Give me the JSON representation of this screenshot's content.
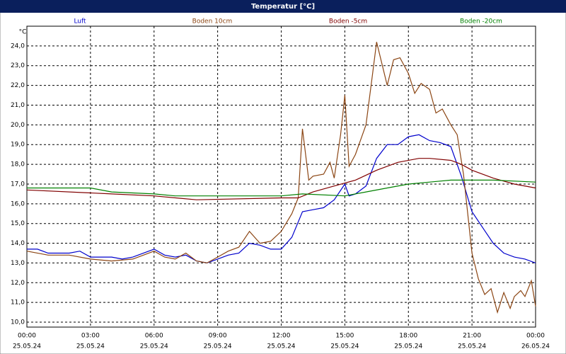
{
  "chart_data": {
    "type": "line",
    "title": "Temperatur [°C]",
    "y_unit": "°C",
    "xlim": [
      0,
      24
    ],
    "ylim": [
      9.75,
      25
    ],
    "grid": true,
    "xticks": [
      {
        "value": 0,
        "label": "00:00",
        "date": "25.05.24"
      },
      {
        "value": 3,
        "label": "03:00",
        "date": "25.05.24"
      },
      {
        "value": 6,
        "label": "06:00",
        "date": "25.05.24"
      },
      {
        "value": 9,
        "label": "09:00",
        "date": "25.05.24"
      },
      {
        "value": 12,
        "label": "12:00",
        "date": "25.05.24"
      },
      {
        "value": 15,
        "label": "15:00",
        "date": "25.05.24"
      },
      {
        "value": 18,
        "label": "18:00",
        "date": "25.05.24"
      },
      {
        "value": 21,
        "label": "21:00",
        "date": "25.05.24"
      },
      {
        "value": 24,
        "label": "00:00",
        "date": "26.05.24"
      }
    ],
    "yticks": [
      {
        "value": 10,
        "label": "10,0"
      },
      {
        "value": 11,
        "label": "11,0"
      },
      {
        "value": 12,
        "label": "12,0"
      },
      {
        "value": 13,
        "label": "13,0"
      },
      {
        "value": 14,
        "label": "14,0"
      },
      {
        "value": 15,
        "label": "15,0"
      },
      {
        "value": 16,
        "label": "16,0"
      },
      {
        "value": 17,
        "label": "17,0"
      },
      {
        "value": 18,
        "label": "18,0"
      },
      {
        "value": 19,
        "label": "19,0"
      },
      {
        "value": 20,
        "label": "20,0"
      },
      {
        "value": 21,
        "label": "21,0"
      },
      {
        "value": 22,
        "label": "22,0"
      },
      {
        "value": 23,
        "label": "23,0"
      },
      {
        "value": 24,
        "label": "24,0"
      }
    ],
    "series": [
      {
        "name": "Luft",
        "color": "#0000cc",
        "x": [
          0,
          0.5,
          1,
          2,
          2.5,
          3,
          4,
          4.5,
          5,
          6,
          6.5,
          7,
          7.5,
          8,
          8.5,
          9,
          9.5,
          10,
          10.5,
          11,
          11.5,
          12,
          12.5,
          13,
          13.5,
          14,
          14.5,
          15,
          15.2,
          15.5,
          16,
          16.5,
          17,
          17.5,
          18,
          18.5,
          19,
          19.5,
          20,
          20.5,
          21,
          21.5,
          22,
          22.5,
          23,
          23.5,
          24
        ],
        "values": [
          13.7,
          13.7,
          13.5,
          13.5,
          13.6,
          13.3,
          13.3,
          13.2,
          13.3,
          13.7,
          13.4,
          13.3,
          13.4,
          13.1,
          13.0,
          13.2,
          13.4,
          13.5,
          14.0,
          13.9,
          13.7,
          13.7,
          14.3,
          15.6,
          15.7,
          15.8,
          16.2,
          17.0,
          16.4,
          16.5,
          16.9,
          18.3,
          19.0,
          19.0,
          19.4,
          19.5,
          19.2,
          19.1,
          18.9,
          17.4,
          15.6,
          14.8,
          14.0,
          13.5,
          13.3,
          13.2,
          13.0
        ]
      },
      {
        "name": "Boden 10cm",
        "color": "#8b4513",
        "x": [
          0,
          1,
          2,
          3,
          4,
          5,
          6,
          6.5,
          7,
          7.5,
          8,
          8.5,
          9,
          9.5,
          10,
          10.5,
          11,
          11.5,
          12,
          12.5,
          12.8,
          13,
          13.3,
          13.5,
          14,
          14.3,
          14.5,
          14.8,
          15,
          15.2,
          15.5,
          16,
          16.3,
          16.5,
          17,
          17.3,
          17.6,
          18,
          18.3,
          18.6,
          19,
          19.3,
          19.6,
          20,
          20.3,
          20.6,
          21,
          21.3,
          21.6,
          21.9,
          22.2,
          22.5,
          22.8,
          23,
          23.3,
          23.5,
          23.8,
          24
        ],
        "values": [
          13.6,
          13.4,
          13.4,
          13.2,
          13.1,
          13.2,
          13.6,
          13.3,
          13.2,
          13.5,
          13.1,
          13.0,
          13.3,
          13.6,
          13.8,
          14.6,
          14.0,
          14.1,
          14.6,
          15.5,
          16.3,
          19.8,
          17.2,
          17.4,
          17.5,
          18.1,
          17.3,
          19.5,
          21.5,
          17.9,
          18.5,
          20.0,
          22.5,
          24.2,
          22.0,
          23.3,
          23.4,
          22.6,
          21.6,
          22.1,
          21.8,
          20.6,
          20.8,
          20.0,
          19.5,
          17.5,
          13.5,
          12.2,
          11.4,
          11.7,
          10.5,
          11.5,
          10.7,
          11.3,
          11.6,
          11.3,
          12.1,
          10.8
        ]
      },
      {
        "name": "Boden -5cm",
        "color": "#800000",
        "x": [
          0,
          4,
          6,
          8,
          12,
          12.8,
          13.5,
          14.5,
          15.5,
          16.5,
          17.5,
          18.5,
          19,
          20,
          20.5,
          21,
          22,
          23,
          24
        ],
        "values": [
          16.7,
          16.5,
          16.4,
          16.2,
          16.3,
          16.3,
          16.6,
          16.9,
          17.2,
          17.7,
          18.1,
          18.3,
          18.3,
          18.2,
          18.0,
          17.7,
          17.3,
          17.0,
          16.8
        ]
      },
      {
        "name": "Boden -20cm",
        "color": "#008000",
        "x": [
          0,
          3,
          4,
          6,
          7,
          12,
          13,
          15,
          16,
          17,
          18,
          19,
          20,
          22,
          24
        ],
        "values": [
          16.8,
          16.8,
          16.6,
          16.5,
          16.4,
          16.4,
          16.5,
          16.4,
          16.6,
          16.8,
          17.0,
          17.1,
          17.2,
          17.2,
          17.1
        ]
      }
    ]
  }
}
